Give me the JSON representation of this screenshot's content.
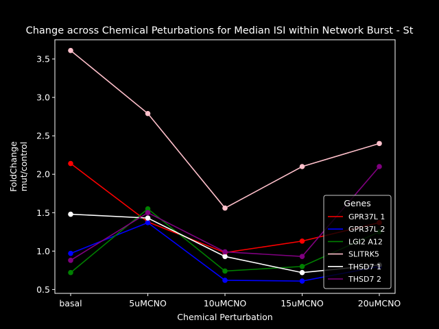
{
  "chart_data": {
    "type": "line",
    "title": "Change across Chemical Peturbations for Median ISI within Network Burst - St",
    "xlabel": "Chemical Perturbation",
    "ylabel_line1": "FoldChange",
    "ylabel_line2": "mut/control",
    "categories": [
      "basal",
      "5uMCNO",
      "10uMCNO",
      "15uMCNO",
      "20uMCNO"
    ],
    "yticks": [
      "0.5",
      "1.0",
      "1.5",
      "2.0",
      "2.5",
      "3.0",
      "3.5"
    ],
    "ylim": [
      0.45,
      3.75
    ],
    "legend_title": "Genes",
    "legend_position": "lower-right",
    "series": [
      {
        "name": "GPR37L 1",
        "color": "#ff0000",
        "values": [
          2.14,
          1.38,
          0.98,
          1.13,
          1.37
        ]
      },
      {
        "name": "GPR37L 2",
        "color": "#0000ff",
        "values": [
          0.97,
          1.37,
          0.62,
          0.61,
          0.8
        ]
      },
      {
        "name": "LGI2 A12",
        "color": "#008000",
        "values": [
          0.72,
          1.55,
          0.74,
          0.8,
          1.25
        ]
      },
      {
        "name": "SLITRK5",
        "color": "#ffc0cb",
        "values": [
          3.61,
          2.79,
          1.56,
          2.1,
          2.4
        ]
      },
      {
        "name": "THSD7 1",
        "color": "#ffffff",
        "values": [
          1.48,
          1.43,
          0.93,
          0.72,
          0.82
        ]
      },
      {
        "name": "THSD7 2",
        "color": "#800080",
        "values": [
          0.88,
          1.5,
          0.99,
          0.93,
          2.1
        ]
      }
    ]
  }
}
